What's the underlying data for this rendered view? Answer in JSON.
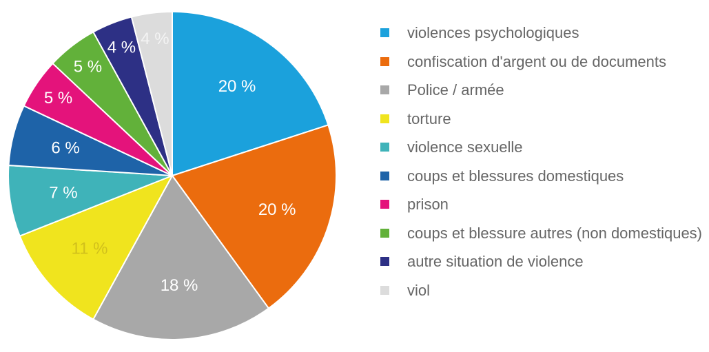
{
  "chart_data": {
    "type": "pie",
    "slices": [
      {
        "label": "violences psychologiques",
        "value": 20,
        "value_label": "20 %",
        "color": "#1ba1dc",
        "label_color": "#ffffff"
      },
      {
        "label": "confiscation d'argent ou de documents",
        "value": 20,
        "value_label": "20 %",
        "color": "#eb6c0e",
        "label_color": "#ffffff"
      },
      {
        "label": "Police / armée",
        "value": 18,
        "value_label": "18 %",
        "color": "#a8a8a8",
        "label_color": "#ffffff"
      },
      {
        "label": "torture",
        "value": 11,
        "value_label": "11 %",
        "color": "#f0e41e",
        "label_color": "#d1c01c"
      },
      {
        "label": "violence sexuelle",
        "value": 7,
        "value_label": "7 %",
        "color": "#3fb3b9",
        "label_color": "#ffffff"
      },
      {
        "label": "coups et blessures domestiques",
        "value": 6,
        "value_label": "6 %",
        "color": "#1e63a8",
        "label_color": "#ffffff"
      },
      {
        "label": "prison",
        "value": 5,
        "value_label": "5 %",
        "color": "#e4137b",
        "label_color": "#ffffff"
      },
      {
        "label": "coups et blessure autres (non domestiques)",
        "value": 5,
        "value_label": "5 %",
        "color": "#62b13a",
        "label_color": "#ffffff"
      },
      {
        "label": "autre situation de violence",
        "value": 4,
        "value_label": "4 %",
        "color": "#2d3085",
        "label_color": "#ffffff"
      },
      {
        "label": "viol",
        "value": 4,
        "value_label": "4 %",
        "color": "#dcdcdc",
        "label_color": "#f3f3f3"
      }
    ],
    "legend_position": "right"
  }
}
